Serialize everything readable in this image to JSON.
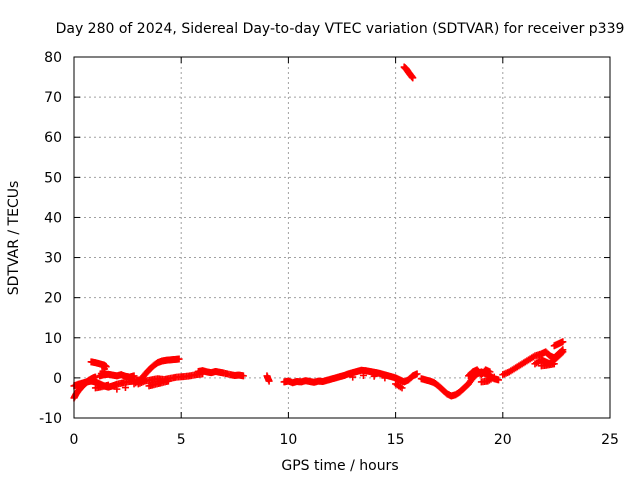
{
  "chart_data": {
    "type": "scatter",
    "title": "Day 280 of 2024, Sidereal Day-to-day VTEC variation (SDTVAR) for receiver p339",
    "xlabel": "GPS time / hours",
    "ylabel": "SDTVAR / TECUs",
    "xlim": [
      0,
      25
    ],
    "ylim": [
      -10,
      80
    ],
    "xticks": [
      0,
      5,
      10,
      15,
      20,
      25
    ],
    "yticks": [
      -10,
      0,
      10,
      20,
      30,
      40,
      50,
      60,
      70,
      80
    ],
    "grid": true,
    "marker": "plus",
    "color": "#ff0000",
    "series": [
      {
        "name": "SDTVAR",
        "points": [
          [
            0.0,
            -5.0
          ],
          [
            0.1,
            -4.0
          ],
          [
            0.2,
            -3.2
          ],
          [
            0.3,
            -2.6
          ],
          [
            0.4,
            -2.0
          ],
          [
            0.5,
            -1.5
          ],
          [
            0.6,
            -1.0
          ],
          [
            0.7,
            -0.6
          ],
          [
            0.8,
            -0.3
          ],
          [
            0.9,
            0.0
          ],
          [
            1.0,
            0.2
          ],
          [
            0.0,
            -2.0
          ],
          [
            0.2,
            -1.6
          ],
          [
            0.4,
            -1.3
          ],
          [
            0.6,
            -1.0
          ],
          [
            0.8,
            -0.8
          ],
          [
            1.0,
            -1.0
          ],
          [
            1.2,
            -1.5
          ],
          [
            1.4,
            -2.0
          ],
          [
            1.6,
            -2.3
          ],
          [
            1.8,
            -2.0
          ],
          [
            2.0,
            -1.6
          ],
          [
            2.3,
            -1.2
          ],
          [
            2.6,
            -0.9
          ],
          [
            2.9,
            -0.6
          ],
          [
            3.2,
            -0.4
          ],
          [
            0.8,
            4.0
          ],
          [
            1.0,
            3.8
          ],
          [
            1.2,
            3.5
          ],
          [
            1.4,
            3.2
          ],
          [
            1.5,
            2.8
          ],
          [
            1.2,
            0.5
          ],
          [
            1.4,
            0.8
          ],
          [
            1.6,
            0.9
          ],
          [
            1.8,
            0.7
          ],
          [
            2.0,
            0.5
          ],
          [
            2.2,
            0.8
          ],
          [
            2.4,
            0.4
          ],
          [
            2.6,
            0.2
          ],
          [
            2.8,
            0.5
          ],
          [
            1.0,
            -2.5
          ],
          [
            1.3,
            -2.2
          ],
          [
            1.6,
            -1.8
          ],
          [
            2.0,
            -2.8
          ],
          [
            2.4,
            -2.4
          ],
          [
            2.8,
            -1.5
          ],
          [
            3.1,
            -0.5
          ],
          [
            3.3,
            0.8
          ],
          [
            3.5,
            2.0
          ],
          [
            3.7,
            3.0
          ],
          [
            3.9,
            3.8
          ],
          [
            4.1,
            4.2
          ],
          [
            4.3,
            4.4
          ],
          [
            4.5,
            4.5
          ],
          [
            4.7,
            4.6
          ],
          [
            4.9,
            4.7
          ],
          [
            3.0,
            -1.5
          ],
          [
            3.3,
            -0.8
          ],
          [
            3.6,
            -0.5
          ],
          [
            3.9,
            -0.2
          ],
          [
            4.2,
            -0.4
          ],
          [
            4.5,
            -0.1
          ],
          [
            4.8,
            0.2
          ],
          [
            5.1,
            0.3
          ],
          [
            5.4,
            0.5
          ],
          [
            5.7,
            0.8
          ],
          [
            6.0,
            1.0
          ],
          [
            3.5,
            -2.0
          ],
          [
            3.8,
            -1.6
          ],
          [
            4.1,
            -1.2
          ],
          [
            4.4,
            -0.8
          ],
          [
            5.8,
            1.6
          ],
          [
            6.0,
            1.8
          ],
          [
            6.2,
            1.5
          ],
          [
            6.4,
            1.3
          ],
          [
            6.6,
            1.6
          ],
          [
            6.8,
            1.4
          ],
          [
            7.0,
            1.2
          ],
          [
            7.3,
            0.8
          ],
          [
            7.5,
            0.6
          ],
          [
            7.7,
            0.7
          ],
          [
            7.9,
            0.5
          ],
          [
            9.0,
            0.5
          ],
          [
            9.1,
            -0.8
          ],
          [
            9.8,
            -1.0
          ],
          [
            10.0,
            -0.8
          ],
          [
            10.2,
            -1.2
          ],
          [
            10.4,
            -0.9
          ],
          [
            10.6,
            -1.0
          ],
          [
            10.8,
            -0.7
          ],
          [
            11.0,
            -0.9
          ],
          [
            11.2,
            -1.1
          ],
          [
            11.4,
            -0.8
          ],
          [
            11.6,
            -0.9
          ],
          [
            11.8,
            -0.6
          ],
          [
            12.0,
            -0.3
          ],
          [
            12.2,
            0.0
          ],
          [
            12.4,
            0.3
          ],
          [
            12.6,
            0.6
          ],
          [
            12.8,
            1.0
          ],
          [
            13.0,
            1.3
          ],
          [
            13.2,
            1.6
          ],
          [
            13.4,
            1.9
          ],
          [
            13.6,
            1.8
          ],
          [
            13.8,
            1.6
          ],
          [
            14.0,
            1.4
          ],
          [
            14.2,
            1.2
          ],
          [
            14.4,
            0.9
          ],
          [
            14.6,
            0.6
          ],
          [
            14.8,
            0.3
          ],
          [
            15.0,
            0.0
          ],
          [
            15.2,
            -0.5
          ],
          [
            15.4,
            -1.0
          ],
          [
            15.6,
            -0.5
          ],
          [
            15.8,
            0.5
          ],
          [
            16.0,
            1.0
          ],
          [
            13.0,
            0.2
          ],
          [
            13.5,
            0.6
          ],
          [
            14.0,
            0.4
          ],
          [
            14.5,
            0.0
          ],
          [
            15.0,
            -1.5
          ],
          [
            15.3,
            -2.5
          ],
          [
            16.2,
            -0.2
          ],
          [
            16.4,
            -0.5
          ],
          [
            16.6,
            -0.8
          ],
          [
            16.8,
            -1.2
          ],
          [
            17.0,
            -2.0
          ],
          [
            17.2,
            -3.0
          ],
          [
            17.4,
            -4.0
          ],
          [
            17.6,
            -4.5
          ],
          [
            17.8,
            -4.2
          ],
          [
            18.0,
            -3.5
          ],
          [
            18.2,
            -2.5
          ],
          [
            18.4,
            -1.5
          ],
          [
            18.6,
            0.0
          ],
          [
            18.8,
            1.0
          ],
          [
            19.0,
            1.5
          ],
          [
            19.2,
            1.0
          ],
          [
            19.4,
            0.5
          ],
          [
            19.6,
            -0.2
          ],
          [
            19.8,
            -0.5
          ],
          [
            18.4,
            0.5
          ],
          [
            18.6,
            1.5
          ],
          [
            18.8,
            2.0
          ],
          [
            19.0,
            0.8
          ],
          [
            19.2,
            2.0
          ],
          [
            19.4,
            1.5
          ],
          [
            19.0,
            -1.0
          ],
          [
            19.3,
            -0.8
          ],
          [
            19.6,
            0.2
          ],
          [
            20.0,
            0.8
          ],
          [
            20.3,
            1.5
          ],
          [
            20.6,
            2.5
          ],
          [
            20.9,
            3.5
          ],
          [
            21.2,
            4.5
          ],
          [
            21.5,
            5.5
          ],
          [
            21.8,
            6.0
          ],
          [
            22.0,
            6.5
          ],
          [
            22.2,
            5.5
          ],
          [
            22.4,
            5.0
          ],
          [
            22.6,
            6.0
          ],
          [
            22.8,
            7.0
          ],
          [
            21.5,
            3.5
          ],
          [
            21.8,
            4.5
          ],
          [
            22.0,
            4.0
          ],
          [
            22.2,
            3.5
          ],
          [
            22.4,
            4.5
          ],
          [
            22.6,
            5.5
          ],
          [
            22.8,
            6.5
          ],
          [
            22.4,
            8.0
          ],
          [
            22.6,
            8.5
          ],
          [
            22.8,
            9.0
          ],
          [
            21.8,
            3.0
          ],
          [
            22.1,
            3.2
          ],
          [
            22.4,
            3.5
          ],
          [
            15.4,
            77.5
          ],
          [
            15.5,
            77.0
          ],
          [
            15.6,
            76.2
          ],
          [
            15.7,
            75.5
          ],
          [
            15.8,
            74.8
          ]
        ]
      }
    ]
  }
}
